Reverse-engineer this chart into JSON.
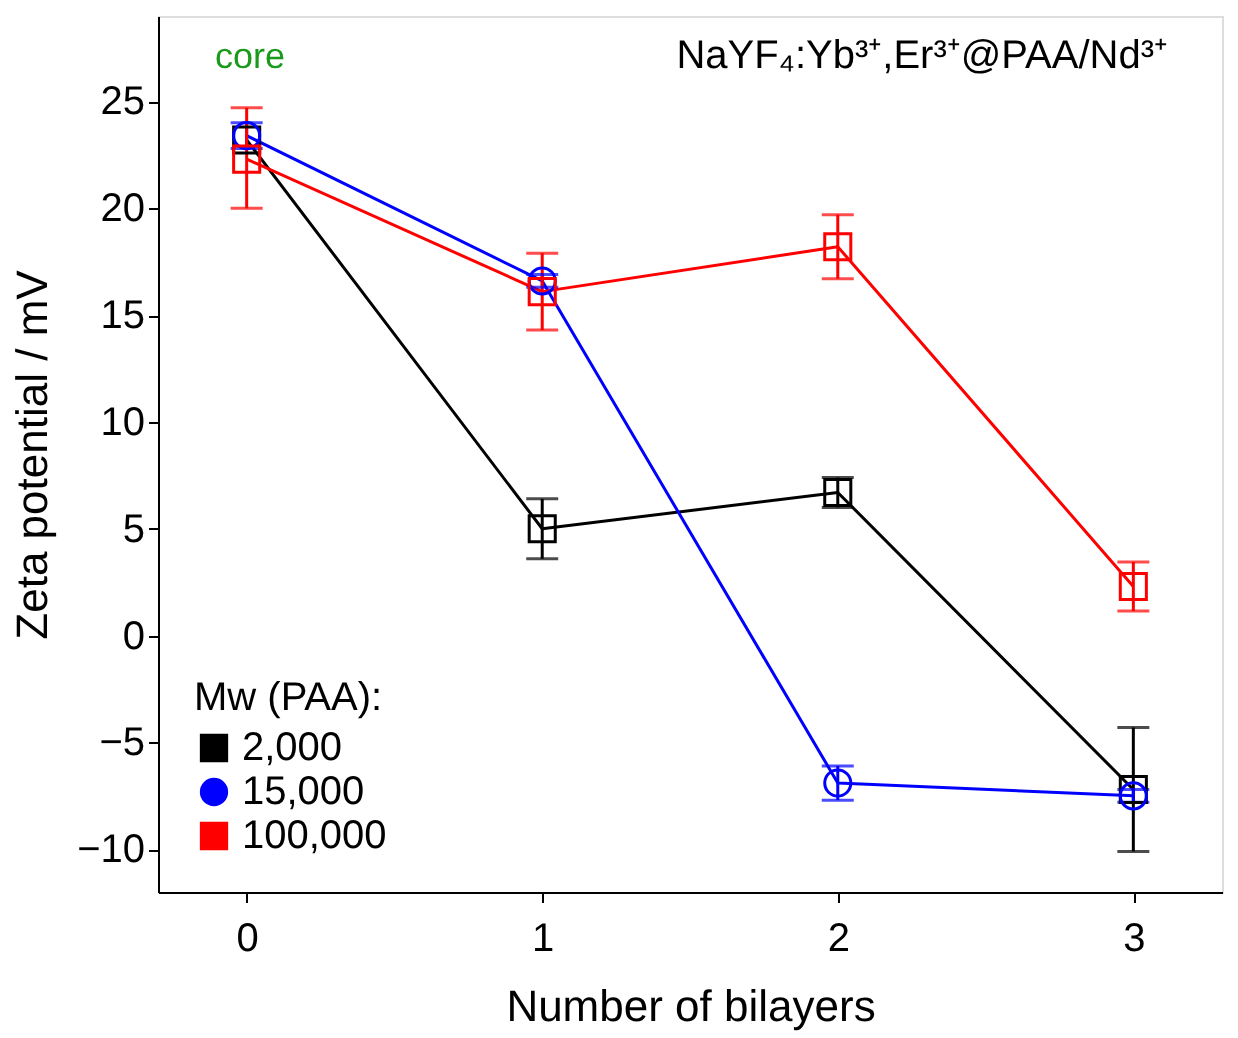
{
  "chart_data": {
    "type": "line",
    "xlabel": "Number of bilayers",
    "ylabel": "Zeta potential / mV",
    "legend_title": "Mw (PAA):",
    "x": [
      0,
      1,
      2,
      3
    ],
    "xlim": [
      -0.3,
      3.3
    ],
    "xticks": [
      0,
      1,
      2,
      3
    ],
    "ylim": [
      -12,
      29
    ],
    "yticks": [
      -10,
      -5,
      0,
      5,
      10,
      15,
      20,
      25
    ],
    "grid": false,
    "legend": "bottom left",
    "series": [
      {
        "name": "2,000",
        "color": "#000000",
        "marker": "square",
        "values": [
          23.2,
          5.0,
          6.7,
          -7.2
        ],
        "errors": [
          null,
          1.4,
          0.7,
          2.9
        ]
      },
      {
        "name": "15,000",
        "color": "#0000ff",
        "marker": "circle",
        "values": [
          23.4,
          16.6,
          -6.9,
          -7.5
        ],
        "errors": [
          0.6,
          0.3,
          0.8,
          0.3
        ]
      },
      {
        "name": "100,000",
        "color": "#ff0000",
        "marker": "square",
        "values": [
          22.3,
          16.1,
          18.2,
          2.3
        ],
        "errors": [
          [
            20.0,
            24.7
          ],
          1.8,
          1.5,
          1.15
        ]
      }
    ],
    "annotations": [
      "NaYF₄:Yb³⁺,Er³⁺@PAA/Nd³⁺",
      "core"
    ]
  }
}
